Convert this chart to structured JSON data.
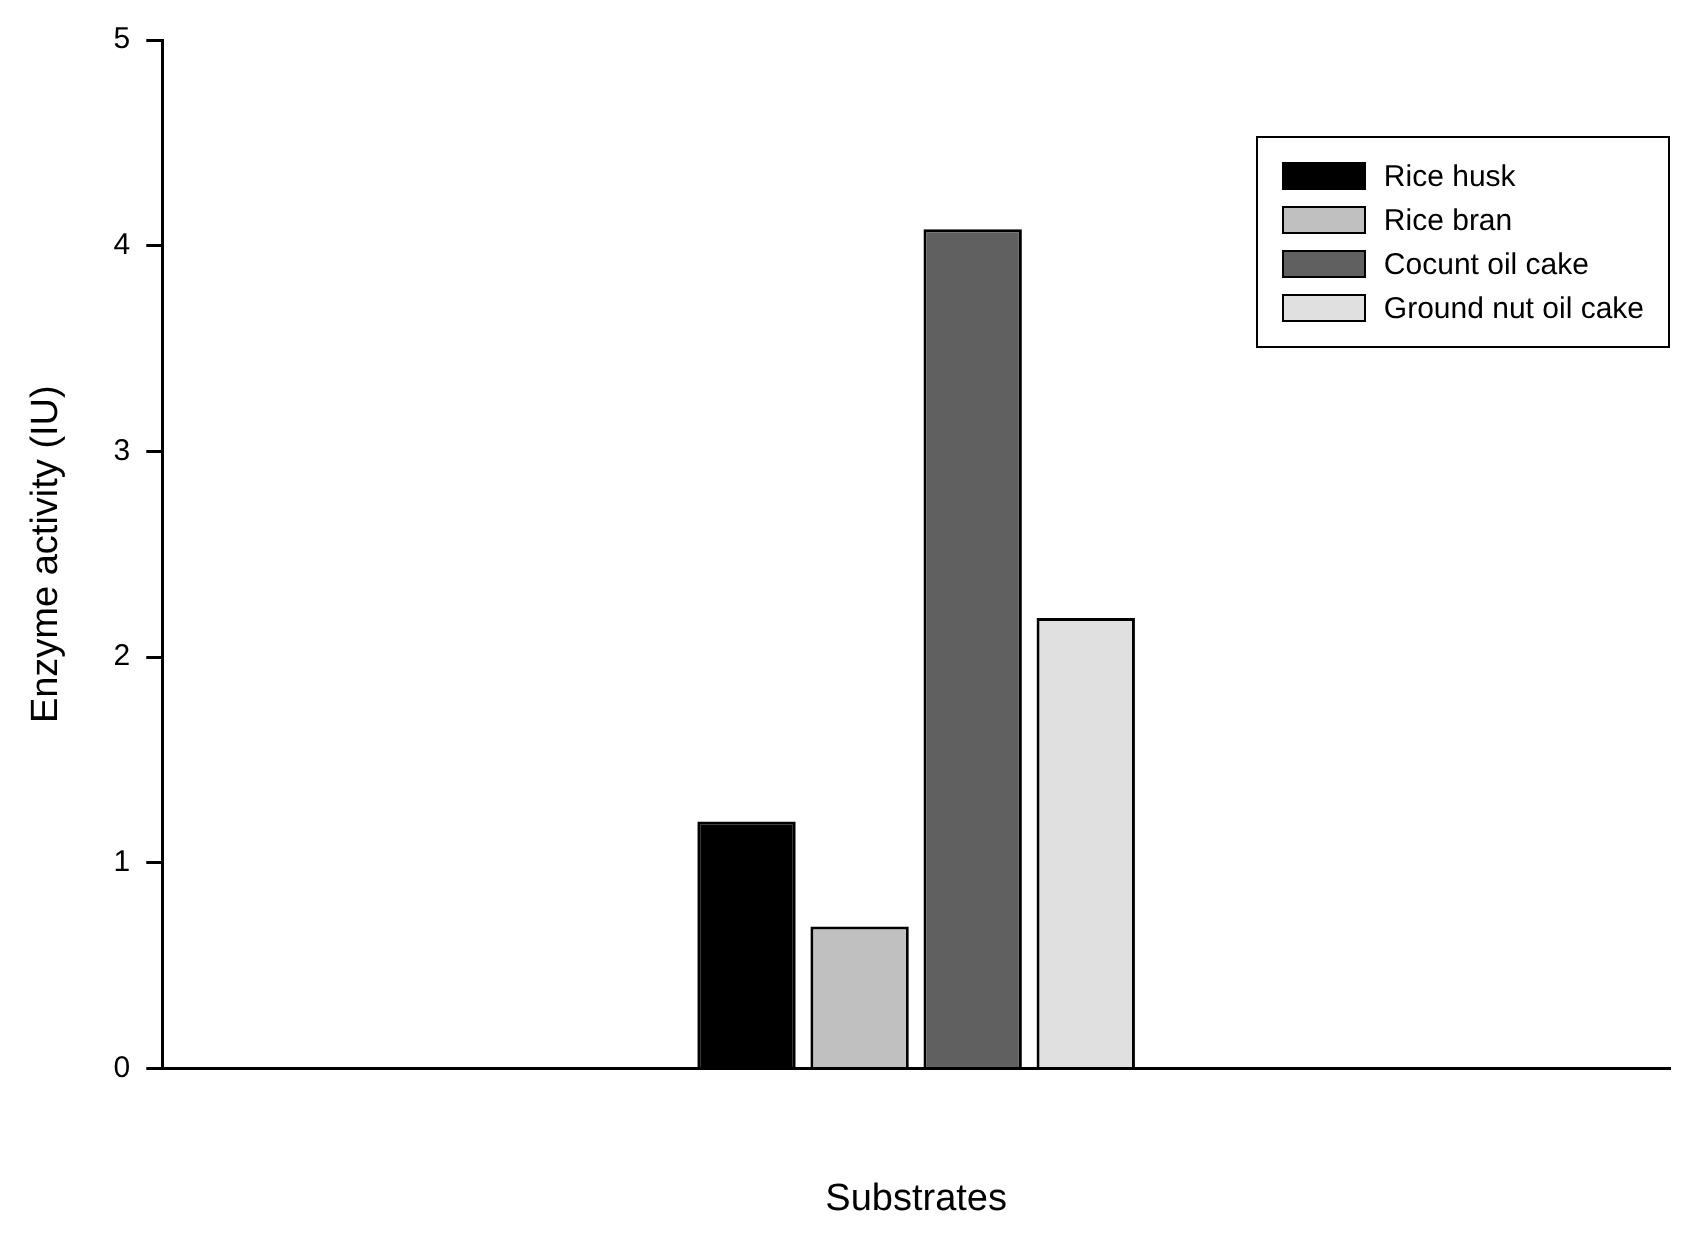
{
  "chart_data": {
    "type": "bar",
    "xlabel": "Substrates",
    "ylabel": "Enzyme activity (IU)",
    "categories": [
      null
    ],
    "series": [
      {
        "name": "Rice husk",
        "color": "#000000",
        "values": [
          1.2
        ]
      },
      {
        "name": "Rice bran",
        "color": "#c0c0c0",
        "values": [
          0.69
        ]
      },
      {
        "name": "Cocunt oil cake",
        "color": "#606060",
        "values": [
          4.08
        ]
      },
      {
        "name": "Ground nut oil cake",
        "color": "#e0e0e0",
        "values": [
          2.19
        ]
      }
    ],
    "ylim": [
      0,
      5
    ],
    "yticks": [
      0,
      1,
      2,
      3,
      4,
      5
    ],
    "grid": false,
    "legend": "top right"
  }
}
